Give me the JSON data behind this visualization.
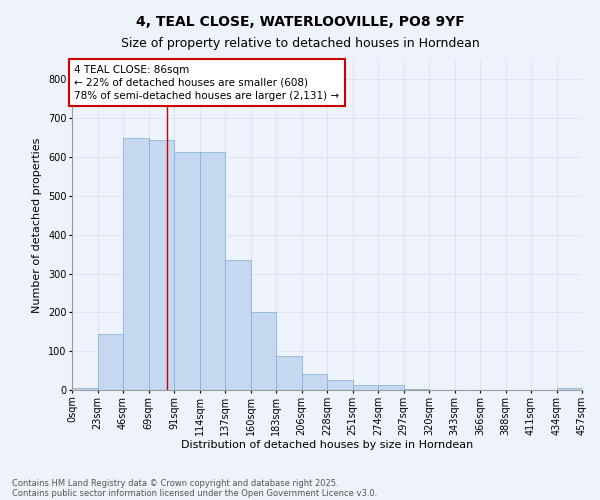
{
  "title_line1": "4, TEAL CLOSE, WATERLOOVILLE, PO8 9YF",
  "title_line2": "Size of property relative to detached houses in Horndean",
  "xlabel": "Distribution of detached houses by size in Horndean",
  "ylabel": "Number of detached properties",
  "bin_edges": [
    0,
    23,
    46,
    69,
    92,
    115,
    138,
    161,
    184,
    207,
    230,
    253,
    276,
    299,
    322,
    345,
    368,
    391,
    414,
    437,
    460
  ],
  "bin_labels": [
    "0sqm",
    "23sqm",
    "46sqm",
    "69sqm",
    "91sqm",
    "114sqm",
    "137sqm",
    "160sqm",
    "183sqm",
    "206sqm",
    "228sqm",
    "251sqm",
    "274sqm",
    "297sqm",
    "320sqm",
    "343sqm",
    "366sqm",
    "388sqm",
    "411sqm",
    "434sqm",
    "457sqm"
  ],
  "bar_heights": [
    5,
    145,
    650,
    645,
    612,
    612,
    335,
    200,
    87,
    42,
    25,
    12,
    13,
    2,
    0,
    0,
    0,
    0,
    0,
    5
  ],
  "bar_color": "#c5d8f0",
  "bar_edge_color": "#7baed4",
  "grid_color": "#d8dde8",
  "vline_x": 86,
  "vline_color": "#cc0000",
  "annotation_box_text": "4 TEAL CLOSE: 86sqm\n← 22% of detached houses are smaller (608)\n78% of semi-detached houses are larger (2,131) →",
  "annotation_box_color": "#cc0000",
  "annotation_box_bg": "#ffffff",
  "ylim": [
    0,
    850
  ],
  "yticks": [
    0,
    100,
    200,
    300,
    400,
    500,
    600,
    700,
    800
  ],
  "footer_line1": "Contains HM Land Registry data © Crown copyright and database right 2025.",
  "footer_line2": "Contains public sector information licensed under the Open Government Licence v3.0.",
  "bg_color": "#eef2fa",
  "plot_bg_color": "#eef2fa",
  "title_fontsize": 10,
  "subtitle_fontsize": 9,
  "axis_label_fontsize": 8,
  "tick_fontsize": 7,
  "annotation_fontsize": 7.5,
  "footer_fontsize": 6
}
